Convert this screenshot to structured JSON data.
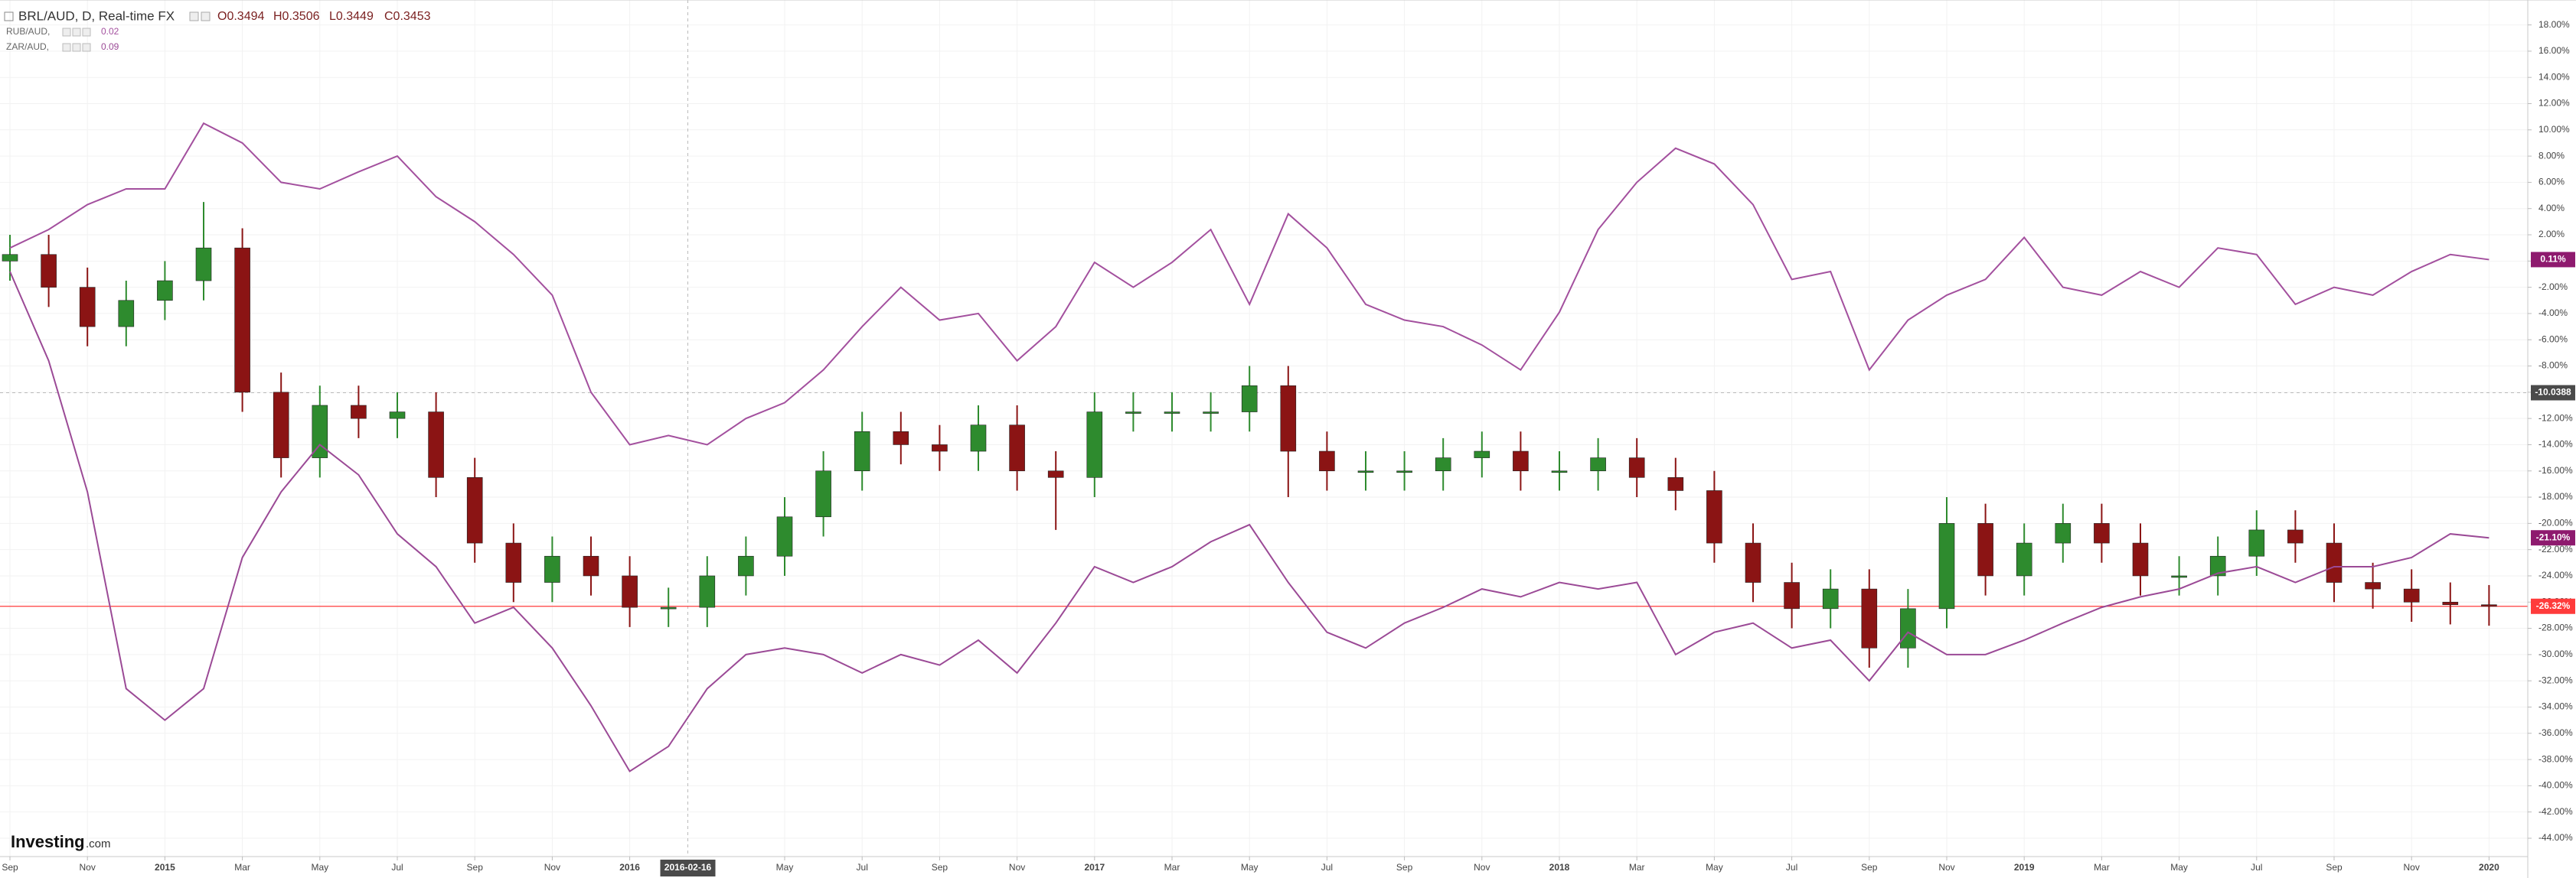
{
  "chart_data": {
    "type": "candlestick",
    "header": {
      "symbol": "BRL/AUD, D, Real-time FX",
      "ohlc": [
        "O0.3494",
        "H0.3506",
        "L0.3449",
        "C0.3453"
      ]
    },
    "watermark": [
      "Investing",
      ".com"
    ],
    "x": [
      "2014-09",
      "2014-10",
      "2014-11",
      "2014-12",
      "2015-01",
      "2015-02",
      "2015-03",
      "2015-04",
      "2015-05",
      "2015-06",
      "2015-07",
      "2015-08",
      "2015-09",
      "2015-10",
      "2015-11",
      "2015-12",
      "2016-01",
      "2016-02",
      "2016-03",
      "2016-04",
      "2016-05",
      "2016-06",
      "2016-07",
      "2016-08",
      "2016-09",
      "2016-10",
      "2016-11",
      "2016-12",
      "2017-01",
      "2017-02",
      "2017-03",
      "2017-04",
      "2017-05",
      "2017-06",
      "2017-07",
      "2017-08",
      "2017-09",
      "2017-10",
      "2017-11",
      "2017-12",
      "2018-01",
      "2018-02",
      "2018-03",
      "2018-04",
      "2018-05",
      "2018-06",
      "2018-07",
      "2018-08",
      "2018-09",
      "2018-10",
      "2018-11",
      "2018-12",
      "2019-01",
      "2019-02",
      "2019-03",
      "2019-04",
      "2019-05",
      "2019-06",
      "2019-07",
      "2019-08",
      "2019-09",
      "2019-10",
      "2019-11",
      "2019-12",
      "2020-01"
    ],
    "xlim": [
      "2014-09",
      "2020-02"
    ],
    "xticks": [
      {
        "value": "2014-09",
        "label": "Sep"
      },
      {
        "value": "2014-11",
        "label": "Nov"
      },
      {
        "value": "2015-01",
        "label": "2015"
      },
      {
        "value": "2015-03",
        "label": "Mar"
      },
      {
        "value": "2015-05",
        "label": "May"
      },
      {
        "value": "2015-07",
        "label": "Jul"
      },
      {
        "value": "2015-09",
        "label": "Sep"
      },
      {
        "value": "2015-11",
        "label": "Nov"
      },
      {
        "value": "2016-01",
        "label": "2016"
      },
      {
        "value": "2016-05",
        "label": "May"
      },
      {
        "value": "2016-07",
        "label": "Jul"
      },
      {
        "value": "2016-09",
        "label": "Sep"
      },
      {
        "value": "2016-11",
        "label": "Nov"
      },
      {
        "value": "2017-01",
        "label": "2017"
      },
      {
        "value": "2017-03",
        "label": "Mar"
      },
      {
        "value": "2017-05",
        "label": "May"
      },
      {
        "value": "2017-07",
        "label": "Jul"
      },
      {
        "value": "2017-09",
        "label": "Sep"
      },
      {
        "value": "2017-11",
        "label": "Nov"
      },
      {
        "value": "2018-01",
        "label": "2018"
      },
      {
        "value": "2018-03",
        "label": "Mar"
      },
      {
        "value": "2018-05",
        "label": "May"
      },
      {
        "value": "2018-07",
        "label": "Jul"
      },
      {
        "value": "2018-09",
        "label": "Sep"
      },
      {
        "value": "2018-11",
        "label": "Nov"
      },
      {
        "value": "2019-01",
        "label": "2019"
      },
      {
        "value": "2019-03",
        "label": "Mar"
      },
      {
        "value": "2019-05",
        "label": "May"
      },
      {
        "value": "2019-07",
        "label": "Jul"
      },
      {
        "value": "2019-09",
        "label": "Sep"
      },
      {
        "value": "2019-11",
        "label": "Nov"
      },
      {
        "value": "2020-01",
        "label": "2020"
      }
    ],
    "ylim": [
      -45.4,
      19.9
    ],
    "yticks": [
      {
        "value": 18,
        "label": "18.00%"
      },
      {
        "value": 16,
        "label": "16.00%"
      },
      {
        "value": 14,
        "label": "14.00%"
      },
      {
        "value": 12,
        "label": "12.00%"
      },
      {
        "value": 10,
        "label": "10.00%"
      },
      {
        "value": 8,
        "label": "8.00%"
      },
      {
        "value": 6,
        "label": "6.00%"
      },
      {
        "value": 4,
        "label": "4.00%"
      },
      {
        "value": 2,
        "label": "2.00%"
      },
      {
        "value": 0,
        "label": "0.00%"
      },
      {
        "value": -2,
        "label": "-2.00%"
      },
      {
        "value": -4,
        "label": "-4.00%"
      },
      {
        "value": -6,
        "label": "-6.00%"
      },
      {
        "value": -8,
        "label": "-8.00%"
      },
      {
        "value": -10,
        "label": "-10.00%"
      },
      {
        "value": -12,
        "label": "-12.00%"
      },
      {
        "value": -14,
        "label": "-14.00%"
      },
      {
        "value": -16,
        "label": "-16.00%"
      },
      {
        "value": -18,
        "label": "-18.00%"
      },
      {
        "value": -20,
        "label": "-20.00%"
      },
      {
        "value": -22,
        "label": "-22.00%"
      },
      {
        "value": -24,
        "label": "-24.00%"
      },
      {
        "value": -26,
        "label": "-26.00%"
      },
      {
        "value": -28,
        "label": "-28.00%"
      },
      {
        "value": -30,
        "label": "-30.00%"
      },
      {
        "value": -32,
        "label": "-32.00%"
      },
      {
        "value": -34,
        "label": "-34.00%"
      },
      {
        "value": -36,
        "label": "-36.00%"
      },
      {
        "value": -38,
        "label": "-38.00%"
      },
      {
        "value": -40,
        "label": "-40.00%"
      },
      {
        "value": -42,
        "label": "-42.00%"
      },
      {
        "value": -44,
        "label": "-44.00%"
      }
    ],
    "grid": true,
    "crosshair": {
      "x": "2016-02-16",
      "y": -10.0388
    },
    "series": [
      {
        "type": "candlestick",
        "up_color": "#2e8b2e",
        "down_color": "#8b1414",
        "last_label": "-26.32%",
        "last_color": "#ff3b3b",
        "open": [
          0,
          0.5,
          -2,
          -5,
          -3,
          -1.5,
          1,
          -10,
          -15,
          -11,
          -12,
          -11.5,
          -16.5,
          -21.5,
          -24.5,
          -22.5,
          -24,
          -26.4,
          -26.4,
          -24,
          -22.5,
          -19.5,
          -16,
          -13,
          -14,
          -14.5,
          -12.5,
          -16,
          -16.5,
          -11.5,
          -11.5,
          -11.5,
          -11.5,
          -9.5,
          -14.5,
          -16,
          -16,
          -16,
          -15,
          -14.5,
          -16,
          -16,
          -15,
          -16.5,
          -17.5,
          -21.5,
          -24.5,
          -26.5,
          -25,
          -29.5,
          -26.5,
          -20,
          -24,
          -21.5,
          -20,
          -21.5,
          -24,
          -24,
          -22.5,
          -20.5,
          -21.5,
          -24.5,
          -25,
          -26,
          -26.2
        ],
        "high": [
          2,
          2,
          -0.5,
          -1.5,
          0,
          4.5,
          2.5,
          -8.5,
          -9.5,
          -9.5,
          -10,
          -10,
          -15,
          -20,
          -21,
          -21,
          -22.5,
          -24.9,
          -22.5,
          -21,
          -18,
          -14.5,
          -11.5,
          -11.5,
          -12.5,
          -11,
          -11,
          -14.5,
          -10,
          -10,
          -10,
          -10,
          -8,
          -8,
          -13,
          -14.5,
          -14.5,
          -13.5,
          -13,
          -13,
          -14.5,
          -13.5,
          -13.5,
          -15,
          -16,
          -20,
          -23,
          -23.5,
          -23.5,
          -25,
          -18,
          -18.5,
          -20,
          -18.5,
          -18.5,
          -20,
          -22.5,
          -21,
          -19,
          -19,
          -20,
          -23,
          -23.5,
          -24.5,
          -24.7
        ],
        "low": [
          -1.5,
          -3.5,
          -6.5,
          -6.5,
          -4.5,
          -3,
          -11.5,
          -16.5,
          -16.5,
          -13.5,
          -13.5,
          -18,
          -23,
          -26,
          -26,
          -25.5,
          -27.9,
          -27.9,
          -27.9,
          -25.5,
          -24,
          -21,
          -17.5,
          -15.5,
          -16,
          -16,
          -17.5,
          -20.5,
          -18,
          -13,
          -13,
          -13,
          -13,
          -18,
          -17.5,
          -17.5,
          -17.5,
          -17.5,
          -16.5,
          -17.5,
          -17.5,
          -17.5,
          -18,
          -19,
          -23,
          -26,
          -28,
          -28,
          -31,
          -31,
          -28,
          -25.5,
          -25.5,
          -23,
          -23,
          -25.5,
          -25.5,
          -25.5,
          -24,
          -23,
          -26,
          -26.5,
          -27.5,
          -27.7,
          -27.8
        ],
        "close": [
          0.5,
          -2,
          -5,
          -3,
          -1.5,
          1,
          -10,
          -15,
          -11,
          -12,
          -11.5,
          -16.5,
          -21.5,
          -24.5,
          -22.5,
          -24,
          -26.4,
          -26.4,
          -24,
          -22.5,
          -19.5,
          -16,
          -13,
          -14,
          -14.5,
          -12.5,
          -16,
          -16.5,
          -11.5,
          -11.5,
          -11.5,
          -11.5,
          -9.5,
          -14.5,
          -16,
          -16,
          -16,
          -15,
          -14.5,
          -16,
          -16,
          -15,
          -16.5,
          -17.5,
          -21.5,
          -24.5,
          -26.5,
          -25,
          -29.5,
          -26.5,
          -20,
          -24,
          -21.5,
          -20,
          -21.5,
          -24,
          -24,
          -22.5,
          -20.5,
          -21.5,
          -24.5,
          -25,
          -26,
          -26.2,
          -26.32
        ]
      },
      {
        "type": "line",
        "name": "RUB/AUD,",
        "legend_value": "0.02",
        "color": "#a3509e",
        "last_label": "0.11%",
        "last_color": "#8e1a6e",
        "values": [
          1,
          2.4,
          4.3,
          5.5,
          5.5,
          10.5,
          9,
          6,
          5.5,
          6.8,
          8,
          4.9,
          3,
          0.5,
          -2.6,
          -10,
          -14,
          -13.3,
          -14,
          -12,
          -10.8,
          -8.3,
          -5,
          -2,
          -4.5,
          -4,
          -7.6,
          -5,
          -0.1,
          -2,
          -0.1,
          2.4,
          -3.3,
          3.6,
          1,
          -3.3,
          -4.5,
          -5,
          -6.4,
          -8.3,
          -3.9,
          2.4,
          6,
          8.6,
          7.4,
          4.3,
          -1.4,
          -0.8,
          -8.3,
          -4.5,
          -2.6,
          -1.4,
          1.8,
          -2,
          -2.6,
          -0.8,
          -2,
          1,
          0.5,
          -3.3,
          -2,
          -2.6,
          -0.8,
          0.5,
          0.11
        ]
      },
      {
        "type": "line",
        "name": "ZAR/AUD,",
        "legend_value": "0.09",
        "color": "#9b4a96",
        "last_label": "-21.10%",
        "last_color": "#8e1a6e",
        "values": [
          -0.8,
          -7.6,
          -17.6,
          -32.6,
          -35,
          -32.6,
          -22.6,
          -17.6,
          -14,
          -16.3,
          -20.8,
          -23.3,
          -27.6,
          -26.4,
          -29.5,
          -33.9,
          -38.9,
          -37,
          -32.6,
          -30,
          -29.5,
          -30,
          -31.4,
          -30,
          -30.8,
          -28.9,
          -31.4,
          -27.6,
          -23.3,
          -24.5,
          -23.3,
          -21.4,
          -20.1,
          -24.5,
          -28.3,
          -29.5,
          -27.6,
          -26.4,
          -25,
          -25.6,
          -24.5,
          -25,
          -24.5,
          -30,
          -28.3,
          -27.6,
          -29.5,
          -28.9,
          -32,
          -28.3,
          -30,
          -30,
          -28.9,
          -27.6,
          -26.4,
          -25.6,
          -25,
          -23.8,
          -23.3,
          -24.5,
          -23.3,
          -23.3,
          -22.6,
          -20.8,
          -21.1
        ]
      }
    ]
  }
}
